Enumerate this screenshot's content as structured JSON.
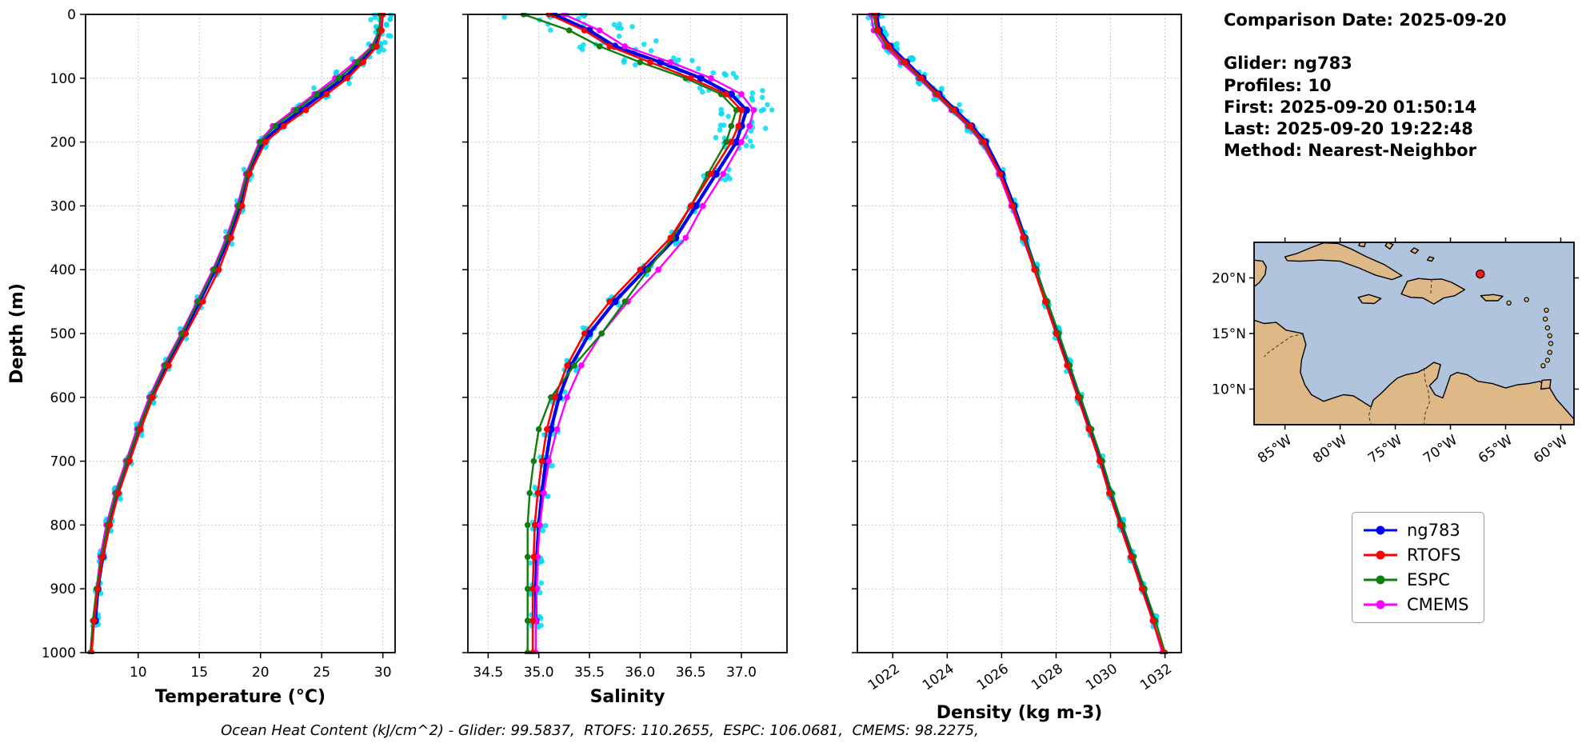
{
  "header": {
    "comparison_date": "Comparison Date: 2025-09-20",
    "glider": "Glider: ng783",
    "profiles": "Profiles: 10",
    "first": "First: 2025-09-20 01:50:14",
    "last": "Last: 2025-09-20 19:22:48",
    "method": "Method: Nearest-Neighbor"
  },
  "footer": {
    "text": "Ocean Heat Content (kJ/cm^2) - Glider: 99.5837,  RTOFS: 110.2655,  ESPC: 106.0681,  CMEMS: 98.2275,"
  },
  "legend": {
    "items": [
      {
        "label": "ng783",
        "color": "#0000ee"
      },
      {
        "label": "RTOFS",
        "color": "#ff0000"
      },
      {
        "label": "ESPC",
        "color": "#0f7d0f"
      },
      {
        "label": "CMEMS",
        "color": "#ff00ff"
      }
    ]
  },
  "colors": {
    "glider_scatter": "#00dcf0",
    "ocean": "#b0c4de",
    "land": "#deb887",
    "marker": "#e0281e"
  },
  "map": {
    "extent": {
      "lon_min": -87.8,
      "lon_max": -58.8,
      "lat_min": 6.8,
      "lat_max": 23.2
    },
    "ocean_color": "#b0c4de",
    "land_color": "#deb887",
    "xticks": [
      {
        "lon": -85,
        "label": "85°W"
      },
      {
        "lon": -80,
        "label": "80°W"
      },
      {
        "lon": -75,
        "label": "75°W"
      },
      {
        "lon": -70,
        "label": "70°W"
      },
      {
        "lon": -65,
        "label": "65°W"
      },
      {
        "lon": -60,
        "label": "60°W"
      }
    ],
    "yticks": [
      {
        "lat": 20,
        "label": "20°N"
      },
      {
        "lat": 15,
        "label": "15°N"
      },
      {
        "lat": 10,
        "label": "10°N"
      }
    ],
    "marker": {
      "lon": -67.3,
      "lat": 20.35,
      "color": "#e0281e"
    }
  },
  "chart_data": [
    {
      "type": "line",
      "xlabel": "Temperature (°C)",
      "ylabel": "Depth (m)",
      "xlim": [
        5.7,
        31.0
      ],
      "ylim": [
        0,
        1000
      ],
      "y_inverted": true,
      "grid": true,
      "xticks": [
        10,
        15,
        20,
        25,
        30
      ],
      "xticklabels": [
        "10",
        "15",
        "20",
        "25",
        "30"
      ],
      "yticks": [
        0,
        100,
        200,
        300,
        400,
        500,
        600,
        700,
        800,
        900,
        1000
      ],
      "rotate_xticklabels": false,
      "depths": [
        0,
        25,
        50,
        75,
        100,
        125,
        150,
        175,
        200,
        250,
        300,
        350,
        400,
        450,
        500,
        550,
        600,
        650,
        700,
        750,
        800,
        850,
        900,
        950,
        1000
      ],
      "draw_order": [
        0,
        3,
        2,
        1
      ],
      "profile_scatter": {
        "color": "#00dcf0",
        "profiles": 10,
        "spread": 0.28,
        "surface_boost": 2.2,
        "depth_jitter": 10
      },
      "series": [
        {
          "name": "ng783",
          "color": "#0000ee",
          "lw": 4.2,
          "ms": 4.6,
          "values": [
            29.9,
            29.8,
            29.4,
            28.2,
            26.8,
            25.0,
            23.3,
            21.6,
            20.2,
            19.0,
            18.3,
            17.4,
            16.3,
            15.0,
            13.7,
            12.3,
            11.1,
            10.1,
            9.2,
            8.3,
            7.6,
            7.1,
            6.7,
            6.5,
            null
          ]
        },
        {
          "name": "RTOFS",
          "color": "#ff0000",
          "lw": 2.6,
          "ms": 3.8,
          "values": [
            30.0,
            29.9,
            29.5,
            28.4,
            27.1,
            25.4,
            23.7,
            21.9,
            20.4,
            19.1,
            18.5,
            17.6,
            16.6,
            15.3,
            13.9,
            12.5,
            11.2,
            10.2,
            9.3,
            8.4,
            7.7,
            7.1,
            6.7,
            6.4,
            6.2
          ]
        },
        {
          "name": "ESPC",
          "color": "#0f7d0f",
          "lw": 2.4,
          "ms": 3.8,
          "values": [
            29.8,
            29.7,
            29.2,
            27.9,
            26.4,
            24.6,
            22.9,
            21.2,
            20.0,
            18.9,
            18.2,
            17.3,
            16.2,
            14.9,
            13.6,
            12.2,
            11.0,
            10.0,
            9.1,
            8.2,
            7.5,
            7.0,
            6.6,
            6.3,
            6.1
          ]
        },
        {
          "name": "CMEMS",
          "color": "#ff00ff",
          "lw": 2.4,
          "ms": 3.8,
          "values": [
            29.9,
            29.7,
            29.1,
            27.7,
            26.1,
            24.4,
            22.7,
            21.0,
            19.9,
            18.8,
            18.1,
            17.2,
            16.1,
            14.8,
            13.5,
            12.1,
            10.9,
            9.9,
            9.0,
            8.1,
            7.4,
            6.9,
            6.6,
            6.3,
            6.1
          ]
        }
      ]
    },
    {
      "type": "line",
      "xlabel": "Salinity",
      "ylabel": "",
      "xlim": [
        34.3,
        37.45
      ],
      "ylim": [
        0,
        1000
      ],
      "y_inverted": true,
      "grid": true,
      "xticks": [
        34.5,
        35.0,
        35.5,
        36.0,
        36.5,
        37.0
      ],
      "xticklabels": [
        "34.5",
        "35.0",
        "35.5",
        "36.0",
        "36.5",
        "37.0"
      ],
      "yticks": [
        0,
        100,
        200,
        300,
        400,
        500,
        600,
        700,
        800,
        900,
        1000
      ],
      "rotate_xticklabels": false,
      "depths": [
        0,
        25,
        50,
        75,
        100,
        125,
        150,
        175,
        200,
        250,
        300,
        350,
        400,
        450,
        500,
        550,
        600,
        650,
        700,
        750,
        800,
        850,
        900,
        950,
        1000
      ],
      "draw_order": [
        0,
        3,
        2,
        1
      ],
      "profile_scatter": {
        "color": "#00dcf0",
        "profiles": 10,
        "spread": 0.07,
        "surface_boost": 6.0,
        "depth_jitter": 10
      },
      "series": [
        {
          "name": "ng783",
          "color": "#0000ee",
          "lw": 4.2,
          "ms": 4.6,
          "values": [
            35.15,
            35.5,
            35.75,
            36.2,
            36.6,
            36.9,
            37.05,
            37.0,
            36.95,
            36.75,
            36.55,
            36.35,
            36.05,
            35.75,
            35.5,
            35.32,
            35.2,
            35.12,
            35.07,
            35.03,
            35.0,
            34.98,
            34.97,
            34.97,
            null
          ]
        },
        {
          "name": "RTOFS",
          "color": "#ff0000",
          "lw": 2.6,
          "ms": 3.8,
          "values": [
            35.1,
            35.45,
            35.7,
            36.1,
            36.5,
            36.85,
            37.0,
            36.97,
            36.9,
            36.7,
            36.5,
            36.3,
            36.0,
            35.7,
            35.45,
            35.28,
            35.16,
            35.08,
            35.03,
            34.99,
            34.96,
            34.95,
            34.94,
            34.94,
            34.94
          ]
        },
        {
          "name": "ESPC",
          "color": "#0f7d0f",
          "lw": 2.4,
          "ms": 3.8,
          "values": [
            34.85,
            35.3,
            35.6,
            36.0,
            36.45,
            36.8,
            36.95,
            36.9,
            36.85,
            36.67,
            36.5,
            36.32,
            36.08,
            35.85,
            35.62,
            35.35,
            35.12,
            35.0,
            34.95,
            34.91,
            34.89,
            34.89,
            34.89,
            34.89,
            34.89
          ]
        },
        {
          "name": "CMEMS",
          "color": "#ff00ff",
          "lw": 2.4,
          "ms": 3.8,
          "values": [
            35.25,
            35.6,
            35.85,
            36.3,
            36.7,
            37.0,
            37.12,
            37.08,
            37.0,
            36.82,
            36.62,
            36.45,
            36.18,
            35.88,
            35.62,
            35.42,
            35.28,
            35.18,
            35.1,
            35.05,
            35.01,
            34.99,
            34.98,
            34.97,
            34.97
          ]
        }
      ]
    },
    {
      "type": "line",
      "xlabel": "Density (kg m-3)",
      "ylabel": "",
      "xlim": [
        1020.7,
        1032.6
      ],
      "ylim": [
        0,
        1000
      ],
      "y_inverted": true,
      "grid": true,
      "xticks": [
        1022,
        1024,
        1026,
        1028,
        1030,
        1032
      ],
      "xticklabels": [
        "1022",
        "1024",
        "1026",
        "1028",
        "1030",
        "1032"
      ],
      "yticks": [
        0,
        100,
        200,
        300,
        400,
        500,
        600,
        700,
        800,
        900,
        1000
      ],
      "rotate_xticklabels": true,
      "depths": [
        0,
        25,
        50,
        75,
        100,
        125,
        150,
        175,
        200,
        250,
        300,
        350,
        400,
        450,
        500,
        550,
        600,
        650,
        700,
        750,
        800,
        850,
        900,
        950,
        1000
      ],
      "draw_order": [
        0,
        3,
        2,
        1
      ],
      "profile_scatter": {
        "color": "#00dcf0",
        "profiles": 10,
        "spread": 0.1,
        "surface_boost": 2.0,
        "depth_jitter": 10
      },
      "series": [
        {
          "name": "ng783",
          "color": "#0000ee",
          "lw": 4.2,
          "ms": 4.6,
          "values": [
            1021.4,
            1021.5,
            1021.9,
            1022.5,
            1023.1,
            1023.7,
            1024.3,
            1024.9,
            1025.4,
            1026.0,
            1026.45,
            1026.85,
            1027.25,
            1027.65,
            1028.05,
            1028.45,
            1028.85,
            1029.25,
            1029.65,
            1030.0,
            1030.4,
            1030.8,
            1031.2,
            1031.6,
            null
          ]
        },
        {
          "name": "RTOFS",
          "color": "#ff0000",
          "lw": 2.6,
          "ms": 3.8,
          "values": [
            1021.35,
            1021.45,
            1021.85,
            1022.45,
            1023.05,
            1023.65,
            1024.25,
            1024.85,
            1025.35,
            1025.95,
            1026.4,
            1026.8,
            1027.2,
            1027.6,
            1028.0,
            1028.4,
            1028.8,
            1029.2,
            1029.6,
            1029.95,
            1030.35,
            1030.75,
            1031.15,
            1031.55,
            1031.95
          ]
        },
        {
          "name": "ESPC",
          "color": "#0f7d0f",
          "lw": 2.4,
          "ms": 3.8,
          "values": [
            1021.3,
            1021.4,
            1021.8,
            1022.4,
            1023.0,
            1023.6,
            1024.2,
            1024.8,
            1025.3,
            1025.95,
            1026.42,
            1026.84,
            1027.26,
            1027.68,
            1028.1,
            1028.5,
            1028.9,
            1029.3,
            1029.7,
            1030.05,
            1030.45,
            1030.85,
            1031.25,
            1031.65,
            1032.0
          ]
        },
        {
          "name": "CMEMS",
          "color": "#ff00ff",
          "lw": 2.4,
          "ms": 3.8,
          "values": [
            1021.2,
            1021.3,
            1021.7,
            1022.3,
            1022.95,
            1023.55,
            1024.15,
            1024.75,
            1025.25,
            1025.9,
            1026.35,
            1026.78,
            1027.2,
            1027.6,
            1028.0,
            1028.4,
            1028.8,
            1029.2,
            1029.6,
            1029.95,
            1030.35,
            1030.75,
            1031.15,
            1031.55,
            1031.9
          ]
        }
      ]
    }
  ]
}
